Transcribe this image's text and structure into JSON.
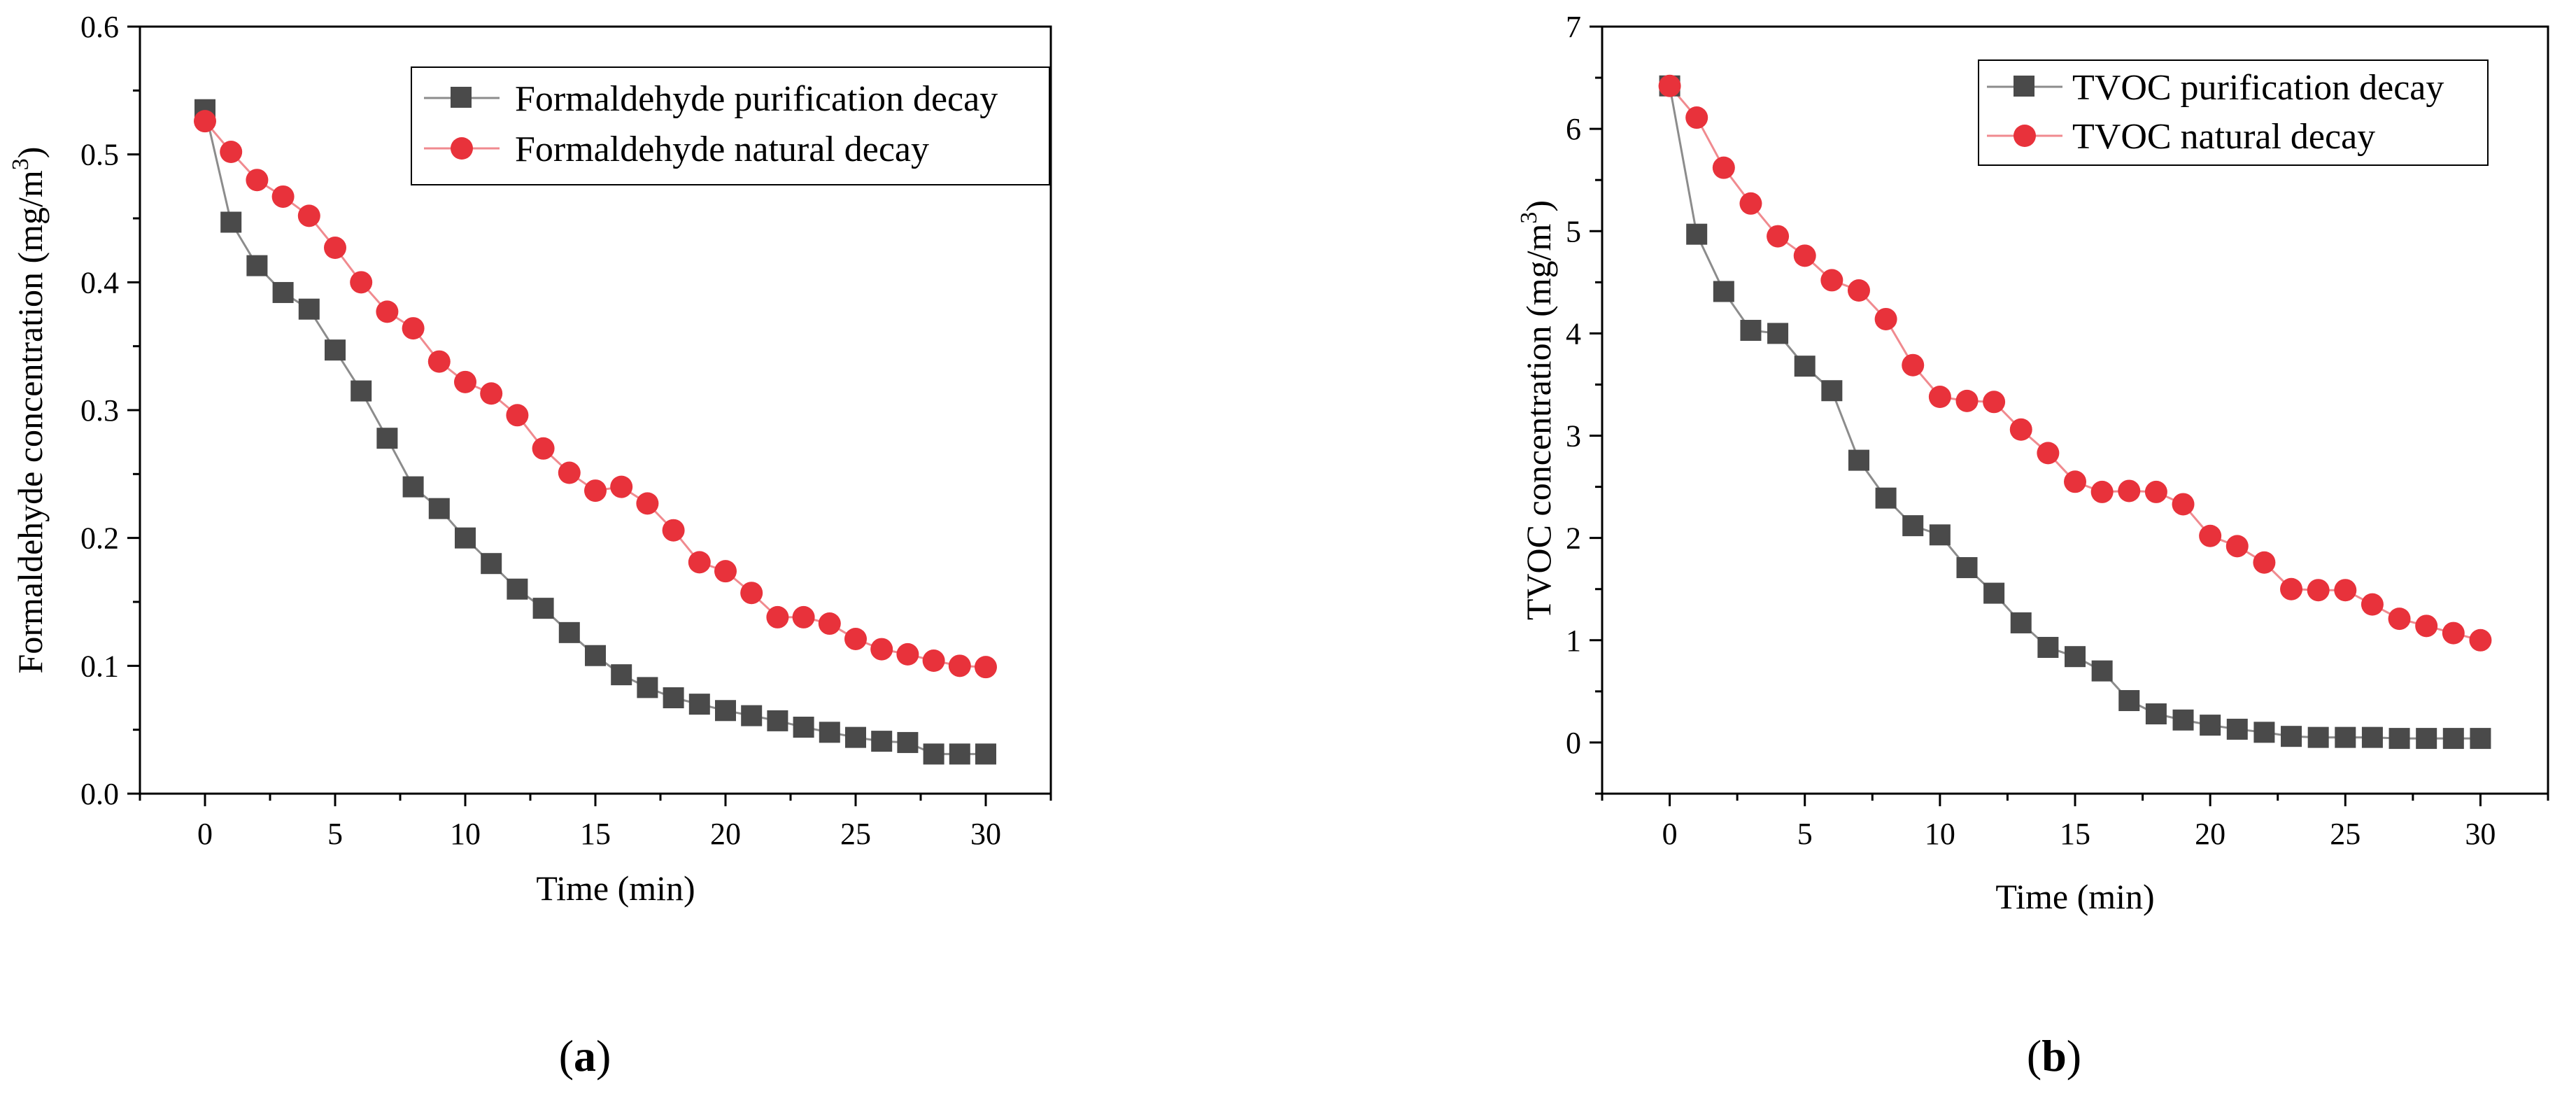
{
  "chart_data": [
    {
      "type": "line",
      "panel_label": "a",
      "title": "",
      "xlabel": "Time (min)",
      "ylabel_main": "Formaldehyde concentration (mg/m",
      "ylabel_sup": "3",
      "ylabel_end": ")",
      "xlim": [
        -2.5,
        32.5
      ],
      "ylim": [
        0,
        0.6
      ],
      "xticks": [
        0,
        5,
        10,
        15,
        20,
        25,
        30
      ],
      "xtick_labels": [
        "0",
        "5",
        "10",
        "15",
        "20",
        "25",
        "30"
      ],
      "yticks": [
        0,
        0.1,
        0.2,
        0.3,
        0.4,
        0.5,
        0.6
      ],
      "ytick_labels": [
        "0.0",
        "0.1",
        "0.2",
        "0.3",
        "0.4",
        "0.5",
        "0.6"
      ],
      "legend_position": "top-right",
      "x": [
        0,
        1,
        2,
        3,
        4,
        5,
        6,
        7,
        8,
        9,
        10,
        11,
        12,
        13,
        14,
        15,
        16,
        17,
        18,
        19,
        20,
        21,
        22,
        23,
        24,
        25,
        26,
        27,
        28,
        29,
        30
      ],
      "series": [
        {
          "name": "Formaldehyde purification decay",
          "marker": "square",
          "color": "#4a4a4a",
          "line_color": "#8c8c8c",
          "values": [
            0.535,
            0.447,
            0.413,
            0.392,
            0.379,
            0.347,
            0.315,
            0.278,
            0.24,
            0.223,
            0.2,
            0.18,
            0.16,
            0.145,
            0.126,
            0.108,
            0.093,
            0.083,
            0.075,
            0.07,
            0.065,
            0.061,
            0.057,
            0.052,
            0.048,
            0.044,
            0.041,
            0.04,
            0.031,
            0.031,
            0.031
          ]
        },
        {
          "name": "Formaldehyde natural decay",
          "marker": "circle",
          "color": "#e8323b",
          "line_color": "#f08a8f",
          "values": [
            0.526,
            0.502,
            0.48,
            0.467,
            0.452,
            0.427,
            0.4,
            0.377,
            0.364,
            0.338,
            0.322,
            0.313,
            0.296,
            0.27,
            0.251,
            0.237,
            0.24,
            0.227,
            0.206,
            0.181,
            0.174,
            0.157,
            0.138,
            0.138,
            0.133,
            0.121,
            0.113,
            0.109,
            0.104,
            0.1,
            0.099
          ]
        }
      ]
    },
    {
      "type": "line",
      "panel_label": "b",
      "title": "",
      "xlabel": "Time (min)",
      "ylabel_main": "TVOC concentration (mg/m",
      "ylabel_sup": "3",
      "ylabel_end": ")",
      "xlim": [
        -2.5,
        32.5
      ],
      "ylim": [
        -0.5,
        7
      ],
      "xticks": [
        0,
        5,
        10,
        15,
        20,
        25,
        30
      ],
      "xtick_labels": [
        "0",
        "5",
        "10",
        "15",
        "20",
        "25",
        "30"
      ],
      "yticks": [
        0,
        1,
        2,
        3,
        4,
        5,
        6,
        7
      ],
      "ytick_labels": [
        "0",
        "1",
        "2",
        "3",
        "4",
        "5",
        "6",
        "7"
      ],
      "legend_position": "top-right",
      "x": [
        0,
        1,
        2,
        3,
        4,
        5,
        6,
        7,
        8,
        9,
        10,
        11,
        12,
        13,
        14,
        15,
        16,
        17,
        18,
        19,
        20,
        21,
        22,
        23,
        24,
        25,
        26,
        27,
        28,
        29,
        30
      ],
      "series": [
        {
          "name": "TVOC purification decay",
          "marker": "square",
          "color": "#4a4a4a",
          "line_color": "#8c8c8c",
          "values": [
            6.42,
            4.97,
            4.41,
            4.03,
            4.0,
            3.68,
            3.44,
            2.76,
            2.39,
            2.12,
            2.03,
            1.71,
            1.46,
            1.17,
            0.93,
            0.84,
            0.7,
            0.41,
            0.28,
            0.22,
            0.17,
            0.13,
            0.1,
            0.06,
            0.05,
            0.05,
            0.05,
            0.04,
            0.04,
            0.04,
            0.04
          ]
        },
        {
          "name": "TVOC natural decay",
          "marker": "circle",
          "color": "#e8323b",
          "line_color": "#f08a8f",
          "values": [
            6.42,
            6.11,
            5.62,
            5.27,
            4.95,
            4.76,
            4.52,
            4.42,
            4.14,
            3.69,
            3.38,
            3.34,
            3.33,
            3.06,
            2.83,
            2.55,
            2.45,
            2.46,
            2.45,
            2.33,
            2.02,
            1.92,
            1.76,
            1.5,
            1.49,
            1.49,
            1.35,
            1.21,
            1.14,
            1.07,
            1.0
          ]
        }
      ]
    }
  ]
}
